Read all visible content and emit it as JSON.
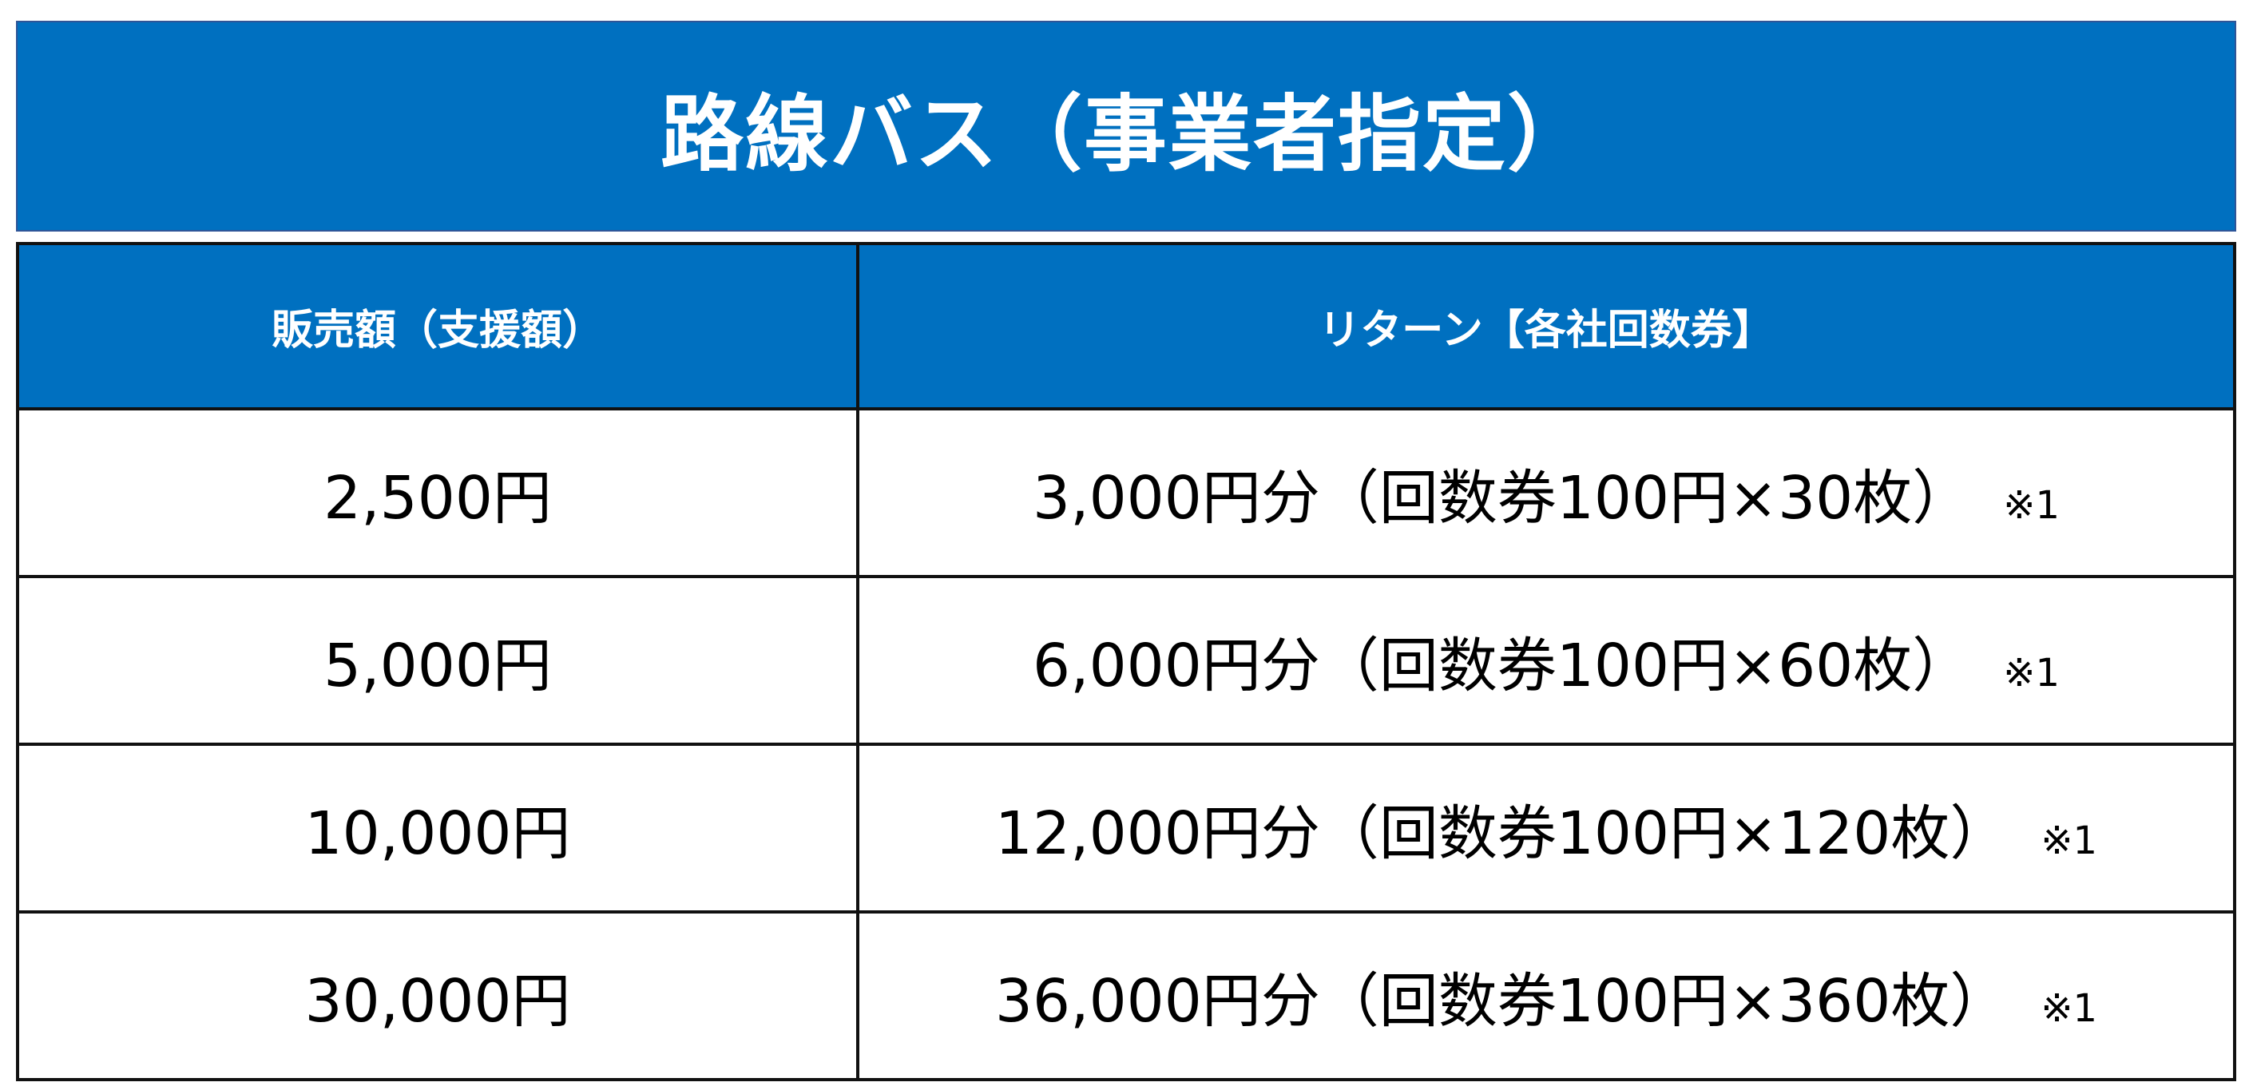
{
  "title": "路線バス（事業者指定）",
  "table": {
    "headers": [
      "販売額（支援額）",
      "リターン【各社回数券】"
    ],
    "rows": [
      {
        "price": "2,500円",
        "return": "3,000円分（回数券100円×30枚）",
        "note": "※1"
      },
      {
        "price": "5,000円",
        "return": "6,000円分（回数券100円×60枚）",
        "note": "※1"
      },
      {
        "price": "10,000円",
        "return": "12,000円分（回数券100円×120枚）",
        "note": "※1"
      },
      {
        "price": "30,000円",
        "return": "36,000円分（回数券100円×360枚）",
        "note": "※1"
      }
    ]
  },
  "colors": {
    "header_bg": "#0070c0",
    "header_text": "#ffffff"
  }
}
